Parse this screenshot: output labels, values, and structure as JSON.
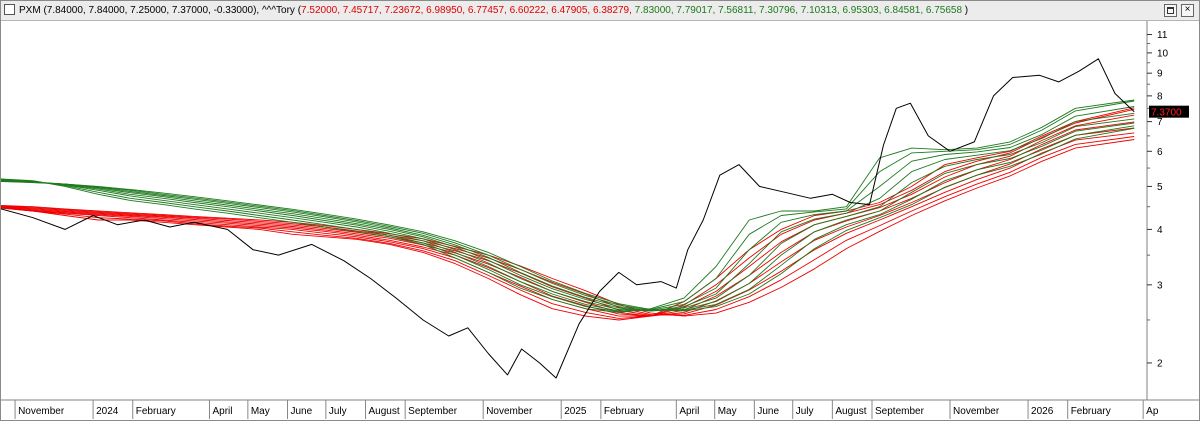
{
  "title_bar": {
    "symbol_text": "PXM (7.84000, 7.84000, 7.25000, 7.37000, -0.33000),",
    "indicator_name": " ^^^Tory (",
    "red_values_text": "7.52000, 7.45717, 7.23672, 6.98950, 6.77457, 6.60222, 6.47905, 6.38279,",
    "green_values_text": " 7.83000, 7.79017, 7.56811, 7.30796, 7.10313, 6.95303, 6.84581, 6.75658",
    "closing_text": " )",
    "restore_button": "restore-window",
    "close_button": "×"
  },
  "chart_data": {
    "type": "line",
    "title": "",
    "xlabel": "",
    "ylabel": "",
    "y_scale": "log",
    "ylim": [
      1.65,
      11.8
    ],
    "y_ticks": [
      2,
      3,
      4,
      5,
      6,
      7,
      8,
      9,
      10,
      11
    ],
    "x_range": [
      "2023-10-21",
      "2026-04-04"
    ],
    "x_ticks": [
      {
        "label": "November",
        "date": "2023-11-01"
      },
      {
        "label": "2024",
        "date": "2024-01-01"
      },
      {
        "label": "February",
        "date": "2024-02-01"
      },
      {
        "label": "April",
        "date": "2024-04-01"
      },
      {
        "label": "May",
        "date": "2024-05-01"
      },
      {
        "label": "June",
        "date": "2024-06-01"
      },
      {
        "label": "July",
        "date": "2024-07-01"
      },
      {
        "label": "August",
        "date": "2024-08-01"
      },
      {
        "label": "September",
        "date": "2024-09-01"
      },
      {
        "label": "November",
        "date": "2024-11-01"
      },
      {
        "label": "2025",
        "date": "2025-01-01"
      },
      {
        "label": "February",
        "date": "2025-02-01"
      },
      {
        "label": "April",
        "date": "2025-04-01"
      },
      {
        "label": "May",
        "date": "2025-05-01"
      },
      {
        "label": "June",
        "date": "2025-06-01"
      },
      {
        "label": "July",
        "date": "2025-07-01"
      },
      {
        "label": "August",
        "date": "2025-08-01"
      },
      {
        "label": "September",
        "date": "2025-09-01"
      },
      {
        "label": "November",
        "date": "2025-11-01"
      },
      {
        "label": "2026",
        "date": "2026-01-01"
      },
      {
        "label": "February",
        "date": "2026-02-01"
      },
      {
        "label": "Ap",
        "date": "2026-04-01"
      }
    ],
    "last_price_label": "7.3700",
    "last_price": 7.37,
    "grid": false,
    "colors": {
      "price": "#000000",
      "short_ma": "#ee0000",
      "long_ma": "#1e7a1e"
    },
    "price_series": {
      "x": [
        "2023-10-21",
        "2023-11-15",
        "2023-12-10",
        "2024-01-01",
        "2024-01-20",
        "2024-02-10",
        "2024-03-01",
        "2024-03-20",
        "2024-04-15",
        "2024-05-05",
        "2024-05-25",
        "2024-06-20",
        "2024-07-15",
        "2024-08-05",
        "2024-08-25",
        "2024-09-15",
        "2024-10-05",
        "2024-10-20",
        "2024-11-05",
        "2024-11-20",
        "2024-12-01",
        "2024-12-15",
        "2024-12-28",
        "2025-01-15",
        "2025-01-31",
        "2025-02-15",
        "2025-03-01",
        "2025-03-20",
        "2025-04-01",
        "2025-04-10",
        "2025-04-22",
        "2025-05-05",
        "2025-05-20",
        "2025-06-05",
        "2025-06-25",
        "2025-07-15",
        "2025-08-01",
        "2025-08-15",
        "2025-08-30",
        "2025-09-10",
        "2025-09-20",
        "2025-10-01",
        "2025-10-15",
        "2025-11-01",
        "2025-11-20",
        "2025-12-05",
        "2025-12-20",
        "2026-01-10",
        "2026-01-25",
        "2026-02-10",
        "2026-02-25",
        "2026-03-10",
        "2026-03-25"
      ],
      "y": [
        4.45,
        4.25,
        4.0,
        4.3,
        4.1,
        4.2,
        4.05,
        4.15,
        4.0,
        3.6,
        3.5,
        3.7,
        3.4,
        3.1,
        2.8,
        2.5,
        2.3,
        2.4,
        2.1,
        1.88,
        2.15,
        2.0,
        1.85,
        2.45,
        2.9,
        3.2,
        3.0,
        3.05,
        2.95,
        3.6,
        4.2,
        5.3,
        5.6,
        5.0,
        4.85,
        4.7,
        4.8,
        4.6,
        4.55,
        6.2,
        7.5,
        7.7,
        6.5,
        6.0,
        6.3,
        8.0,
        8.8,
        8.9,
        8.6,
        9.1,
        9.7,
        8.1,
        7.37
      ]
    },
    "series": [
      {
        "values": [
          4.47,
          4.4,
          4.3,
          4.2,
          4.2,
          4.15,
          4.1,
          4.05,
          4.0,
          3.9,
          3.85,
          3.8,
          3.7,
          3.55,
          3.35,
          3.1,
          2.85,
          2.65,
          2.55,
          2.5,
          2.55,
          2.75,
          3.1,
          3.6,
          4.0,
          4.3,
          4.4,
          4.6,
          5.0,
          5.6,
          5.8,
          6.0,
          6.5,
          7.0,
          7.52
        ]
      },
      {
        "values": [
          4.47,
          4.4,
          4.33,
          4.25,
          4.22,
          4.18,
          4.12,
          4.07,
          4.03,
          3.95,
          3.88,
          3.82,
          3.72,
          3.58,
          3.4,
          3.15,
          2.92,
          2.72,
          2.6,
          2.52,
          2.55,
          2.7,
          3.0,
          3.45,
          3.9,
          4.2,
          4.35,
          4.55,
          4.9,
          5.4,
          5.7,
          5.95,
          6.45,
          6.95,
          7.46
        ]
      },
      {
        "values": [
          4.48,
          4.4,
          4.35,
          4.3,
          4.25,
          4.2,
          4.15,
          4.1,
          4.05,
          4.0,
          3.92,
          3.85,
          3.75,
          3.62,
          3.45,
          3.2,
          2.98,
          2.78,
          2.65,
          2.55,
          2.55,
          2.67,
          2.9,
          3.3,
          3.75,
          4.1,
          4.28,
          4.48,
          4.8,
          5.25,
          5.6,
          5.85,
          6.35,
          6.85,
          7.24
        ]
      },
      {
        "values": [
          4.49,
          4.42,
          4.37,
          4.32,
          4.28,
          4.23,
          4.18,
          4.13,
          4.08,
          4.03,
          3.96,
          3.88,
          3.78,
          3.65,
          3.5,
          3.28,
          3.05,
          2.83,
          2.69,
          2.58,
          2.55,
          2.63,
          2.83,
          3.15,
          3.55,
          3.95,
          4.18,
          4.4,
          4.7,
          5.1,
          5.45,
          5.75,
          6.22,
          6.7,
          6.99
        ]
      },
      {
        "values": [
          4.5,
          4.44,
          4.39,
          4.34,
          4.3,
          4.26,
          4.21,
          4.16,
          4.11,
          4.06,
          3.99,
          3.91,
          3.82,
          3.69,
          3.54,
          3.34,
          3.12,
          2.9,
          2.74,
          2.6,
          2.55,
          2.6,
          2.76,
          3.02,
          3.38,
          3.78,
          4.05,
          4.3,
          4.6,
          4.97,
          5.3,
          5.62,
          6.08,
          6.52,
          6.77
        ]
      },
      {
        "values": [
          4.51,
          4.46,
          4.41,
          4.36,
          4.32,
          4.28,
          4.24,
          4.19,
          4.14,
          4.09,
          4.02,
          3.94,
          3.85,
          3.73,
          3.58,
          3.4,
          3.19,
          2.97,
          2.8,
          2.63,
          2.56,
          2.58,
          2.7,
          2.92,
          3.22,
          3.6,
          3.92,
          4.2,
          4.5,
          4.85,
          5.18,
          5.5,
          5.95,
          6.36,
          6.6
        ]
      },
      {
        "values": [
          4.52,
          4.48,
          4.43,
          4.38,
          4.34,
          4.3,
          4.26,
          4.22,
          4.17,
          4.12,
          4.05,
          3.97,
          3.88,
          3.77,
          3.62,
          3.45,
          3.25,
          3.04,
          2.86,
          2.67,
          2.57,
          2.56,
          2.64,
          2.82,
          3.08,
          3.42,
          3.78,
          4.08,
          4.4,
          4.74,
          5.06,
          5.38,
          5.82,
          6.22,
          6.48
        ]
      },
      {
        "values": [
          4.53,
          4.5,
          4.45,
          4.4,
          4.36,
          4.32,
          4.28,
          4.24,
          4.2,
          4.15,
          4.08,
          4.0,
          3.91,
          3.81,
          3.66,
          3.5,
          3.31,
          3.1,
          2.91,
          2.71,
          2.59,
          2.55,
          2.59,
          2.74,
          2.96,
          3.26,
          3.62,
          3.96,
          4.3,
          4.64,
          4.96,
          5.28,
          5.7,
          6.1,
          6.38
        ]
      },
      {
        "values": [
          5.2,
          5.15,
          5.0,
          4.8,
          4.65,
          4.55,
          4.45,
          4.35,
          4.25,
          4.15,
          4.05,
          3.95,
          3.85,
          3.7,
          3.45,
          3.2,
          2.95,
          2.78,
          2.65,
          2.6,
          2.65,
          2.8,
          3.3,
          4.2,
          4.4,
          4.4,
          4.5,
          5.8,
          6.1,
          6.05,
          6.1,
          6.3,
          6.8,
          7.5,
          7.83
        ]
      },
      {
        "values": [
          5.19,
          5.14,
          5.02,
          4.85,
          4.7,
          4.6,
          4.5,
          4.4,
          4.3,
          4.2,
          4.1,
          4.0,
          3.88,
          3.73,
          3.5,
          3.25,
          3.0,
          2.82,
          2.68,
          2.61,
          2.64,
          2.75,
          3.1,
          3.9,
          4.3,
          4.38,
          4.45,
          5.4,
          5.95,
          6.0,
          6.05,
          6.22,
          6.7,
          7.4,
          7.79
        ]
      },
      {
        "values": [
          5.18,
          5.13,
          5.04,
          4.9,
          4.76,
          4.65,
          4.55,
          4.45,
          4.35,
          4.25,
          4.15,
          4.05,
          3.92,
          3.77,
          3.55,
          3.3,
          3.05,
          2.86,
          2.71,
          2.62,
          2.63,
          2.71,
          2.95,
          3.6,
          4.15,
          4.32,
          4.4,
          5.0,
          5.7,
          5.9,
          5.98,
          6.12,
          6.55,
          7.2,
          7.57
        ]
      },
      {
        "values": [
          5.17,
          5.12,
          5.05,
          4.93,
          4.8,
          4.7,
          4.6,
          4.5,
          4.4,
          4.3,
          4.19,
          4.09,
          3.96,
          3.81,
          3.6,
          3.36,
          3.1,
          2.9,
          2.75,
          2.64,
          2.62,
          2.68,
          2.86,
          3.35,
          3.95,
          4.22,
          4.35,
          4.7,
          5.4,
          5.75,
          5.88,
          6.02,
          6.42,
          7.0,
          7.31
        ]
      },
      {
        "values": [
          5.16,
          5.12,
          5.06,
          4.96,
          4.84,
          4.74,
          4.64,
          4.54,
          4.44,
          4.34,
          4.23,
          4.12,
          4.0,
          3.85,
          3.65,
          3.41,
          3.15,
          2.94,
          2.78,
          2.66,
          2.62,
          2.66,
          2.8,
          3.15,
          3.72,
          4.1,
          4.28,
          4.5,
          5.1,
          5.55,
          5.75,
          5.9,
          6.28,
          6.82,
          7.1
        ]
      },
      {
        "values": [
          5.15,
          5.11,
          5.06,
          4.98,
          4.87,
          4.77,
          4.68,
          4.58,
          4.48,
          4.38,
          4.27,
          4.16,
          4.03,
          3.88,
          3.69,
          3.46,
          3.2,
          2.98,
          2.81,
          2.68,
          2.62,
          2.64,
          2.75,
          3.02,
          3.5,
          3.95,
          4.2,
          4.4,
          4.85,
          5.35,
          5.6,
          5.78,
          6.16,
          6.66,
          6.95
        ]
      },
      {
        "values": [
          5.14,
          5.1,
          5.06,
          4.99,
          4.9,
          4.8,
          4.71,
          4.61,
          4.51,
          4.41,
          4.3,
          4.19,
          4.06,
          3.92,
          3.73,
          3.5,
          3.25,
          3.02,
          2.84,
          2.7,
          2.63,
          2.63,
          2.71,
          2.93,
          3.32,
          3.8,
          4.1,
          4.32,
          4.68,
          5.15,
          5.45,
          5.66,
          6.04,
          6.52,
          6.85
        ]
      },
      {
        "values": [
          5.13,
          5.1,
          5.06,
          5.0,
          4.92,
          4.83,
          4.74,
          4.64,
          4.54,
          4.44,
          4.33,
          4.22,
          4.09,
          3.95,
          3.77,
          3.55,
          3.3,
          3.06,
          2.87,
          2.72,
          2.64,
          2.62,
          2.68,
          2.86,
          3.18,
          3.62,
          3.98,
          4.25,
          4.55,
          4.98,
          5.3,
          5.55,
          5.92,
          6.4,
          6.76
        ]
      }
    ],
    "series_x": [
      "2023-10-21",
      "2023-11-15",
      "2023-12-10",
      "2024-01-05",
      "2024-01-30",
      "2024-02-25",
      "2024-03-20",
      "2024-04-15",
      "2024-05-10",
      "2024-06-05",
      "2024-06-30",
      "2024-07-25",
      "2024-08-20",
      "2024-09-15",
      "2024-10-10",
      "2024-11-05",
      "2024-11-30",
      "2024-12-25",
      "2025-01-20",
      "2025-02-15",
      "2025-03-12",
      "2025-04-07",
      "2025-05-02",
      "2025-05-28",
      "2025-06-22",
      "2025-07-18",
      "2025-08-12",
      "2025-09-07",
      "2025-10-02",
      "2025-10-28",
      "2025-11-22",
      "2025-12-18",
      "2026-01-12",
      "2026-02-07",
      "2026-03-25"
    ]
  }
}
